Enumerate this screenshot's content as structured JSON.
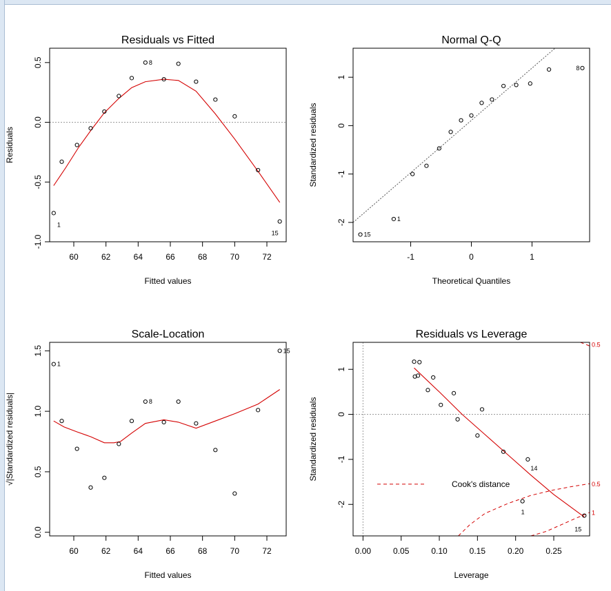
{
  "colors": {
    "smooth": "#d40000",
    "cooks": "#d40000",
    "reference": "#9a9a9a",
    "points": "#000000"
  },
  "chart_data": [
    {
      "type": "scatter",
      "title": "Residuals vs Fitted",
      "xlabel": "Fitted values",
      "ylabel": "Residuals",
      "xlim": [
        58.5,
        73.2
      ],
      "ylim": [
        -1.0,
        0.62
      ],
      "xticks": [
        60,
        62,
        64,
        66,
        68,
        70,
        72
      ],
      "yticks": [
        -1.0,
        -0.5,
        0.0,
        0.5
      ],
      "ytick_labels": [
        "-1.0",
        "-0.5",
        "0.0",
        "0.5"
      ],
      "hline": 0,
      "points": [
        {
          "x": 58.75,
          "y": -0.76,
          "label": "1"
        },
        {
          "x": 59.25,
          "y": -0.33,
          "label": ""
        },
        {
          "x": 60.2,
          "y": -0.19,
          "label": ""
        },
        {
          "x": 61.05,
          "y": -0.05,
          "label": ""
        },
        {
          "x": 61.9,
          "y": 0.09,
          "label": ""
        },
        {
          "x": 62.8,
          "y": 0.22,
          "label": ""
        },
        {
          "x": 63.6,
          "y": 0.37,
          "label": ""
        },
        {
          "x": 64.45,
          "y": 0.5,
          "label": "8"
        },
        {
          "x": 65.6,
          "y": 0.36,
          "label": ""
        },
        {
          "x": 66.5,
          "y": 0.49,
          "label": ""
        },
        {
          "x": 67.6,
          "y": 0.34,
          "label": ""
        },
        {
          "x": 68.8,
          "y": 0.19,
          "label": ""
        },
        {
          "x": 70.0,
          "y": 0.05,
          "label": ""
        },
        {
          "x": 71.45,
          "y": -0.4,
          "label": ""
        },
        {
          "x": 72.8,
          "y": -0.83,
          "label": "15"
        }
      ],
      "smooth": [
        [
          58.75,
          -0.53
        ],
        [
          59.5,
          -0.38
        ],
        [
          60.3,
          -0.21
        ],
        [
          61.1,
          -0.06
        ],
        [
          61.9,
          0.08
        ],
        [
          62.8,
          0.2
        ],
        [
          63.6,
          0.29
        ],
        [
          64.45,
          0.34
        ],
        [
          65.6,
          0.36
        ],
        [
          66.5,
          0.35
        ],
        [
          67.6,
          0.26
        ],
        [
          68.8,
          0.07
        ],
        [
          70.0,
          -0.14
        ],
        [
          71.45,
          -0.41
        ],
        [
          72.8,
          -0.67
        ]
      ]
    },
    {
      "type": "scatter",
      "title": "Normal Q-Q",
      "xlabel": "Theoretical Quantiles",
      "ylabel": "Standardized residuals",
      "xlim": [
        -1.95,
        1.95
      ],
      "ylim": [
        -2.4,
        1.6
      ],
      "xticks": [
        -1,
        0,
        1
      ],
      "yticks": [
        -2,
        -1,
        0,
        1
      ],
      "ytick_labels": [
        "-2",
        "-1",
        "0",
        "1"
      ],
      "refline": [
        [
          -1.95,
          -2.0
        ],
        [
          1.38,
          1.6
        ]
      ],
      "points": [
        {
          "x": -1.83,
          "y": -2.25,
          "label": "15"
        },
        {
          "x": -1.28,
          "y": -1.93,
          "label": "1"
        },
        {
          "x": -0.97,
          "y": -1.0,
          "label": ""
        },
        {
          "x": -0.74,
          "y": -0.83,
          "label": ""
        },
        {
          "x": -0.53,
          "y": -0.47,
          "label": ""
        },
        {
          "x": -0.34,
          "y": -0.13,
          "label": ""
        },
        {
          "x": -0.17,
          "y": 0.11,
          "label": ""
        },
        {
          "x": 0.0,
          "y": 0.21,
          "label": ""
        },
        {
          "x": 0.17,
          "y": 0.47,
          "label": ""
        },
        {
          "x": 0.34,
          "y": 0.54,
          "label": ""
        },
        {
          "x": 0.53,
          "y": 0.82,
          "label": ""
        },
        {
          "x": 0.74,
          "y": 0.84,
          "label": ""
        },
        {
          "x": 0.97,
          "y": 0.87,
          "label": ""
        },
        {
          "x": 1.28,
          "y": 1.16,
          "label": ""
        },
        {
          "x": 1.83,
          "y": 1.19,
          "label": "8"
        }
      ]
    },
    {
      "type": "scatter",
      "title": "Scale-Location",
      "xlabel": "Fitted values",
      "ylabel": "√|Standardized residuals|",
      "xlim": [
        58.5,
        73.2
      ],
      "ylim": [
        -0.03,
        1.57
      ],
      "xticks": [
        60,
        62,
        64,
        66,
        68,
        70,
        72
      ],
      "yticks": [
        0.0,
        0.5,
        1.0,
        1.5
      ],
      "ytick_labels": [
        "0.0",
        "0.5",
        "1.0",
        "1.5"
      ],
      "points": [
        {
          "x": 58.75,
          "y": 1.39,
          "label": "1"
        },
        {
          "x": 59.25,
          "y": 0.92,
          "label": ""
        },
        {
          "x": 60.2,
          "y": 0.69,
          "label": ""
        },
        {
          "x": 61.05,
          "y": 0.37,
          "label": ""
        },
        {
          "x": 61.9,
          "y": 0.45,
          "label": ""
        },
        {
          "x": 62.8,
          "y": 0.73,
          "label": ""
        },
        {
          "x": 63.6,
          "y": 0.92,
          "label": ""
        },
        {
          "x": 64.45,
          "y": 1.08,
          "label": "8"
        },
        {
          "x": 65.6,
          "y": 0.91,
          "label": ""
        },
        {
          "x": 66.5,
          "y": 1.08,
          "label": ""
        },
        {
          "x": 67.6,
          "y": 0.9,
          "label": ""
        },
        {
          "x": 68.8,
          "y": 0.68,
          "label": ""
        },
        {
          "x": 70.0,
          "y": 0.32,
          "label": ""
        },
        {
          "x": 71.45,
          "y": 1.01,
          "label": ""
        },
        {
          "x": 72.8,
          "y": 1.5,
          "label": "15"
        }
      ],
      "smooth": [
        [
          58.75,
          0.92
        ],
        [
          59.4,
          0.87
        ],
        [
          60.2,
          0.83
        ],
        [
          61.05,
          0.79
        ],
        [
          61.9,
          0.74
        ],
        [
          62.5,
          0.74
        ],
        [
          62.9,
          0.75
        ],
        [
          63.6,
          0.82
        ],
        [
          64.45,
          0.9
        ],
        [
          65.6,
          0.93
        ],
        [
          66.5,
          0.91
        ],
        [
          67.6,
          0.86
        ],
        [
          68.8,
          0.92
        ],
        [
          70.0,
          0.98
        ],
        [
          71.45,
          1.06
        ],
        [
          72.8,
          1.18
        ]
      ]
    },
    {
      "type": "scatter",
      "title": "Residuals vs Leverage",
      "xlabel": "Leverage",
      "ylabel": "Standardized residuals",
      "xlim": [
        -0.013,
        0.297
      ],
      "ylim": [
        -2.7,
        1.6
      ],
      "xticks": [
        0.0,
        0.05,
        0.1,
        0.15,
        0.2,
        0.25
      ],
      "xtick_labels": [
        "0.00",
        "0.05",
        "0.10",
        "0.15",
        "0.20",
        "0.25"
      ],
      "yticks": [
        -2,
        -1,
        0,
        1
      ],
      "ytick_labels": [
        "-2",
        "-1",
        "0",
        "1"
      ],
      "hline": 0,
      "vline": 0,
      "legend": {
        "text": "Cook's distance",
        "position": "bottom-left"
      },
      "cooks_labels": [
        {
          "text": "0.5",
          "y": 1.55
        },
        {
          "text": "0.5",
          "y": -1.55
        },
        {
          "text": "1",
          "y": -2.19
        }
      ],
      "points": [
        {
          "x": 0.067,
          "y": 1.17,
          "label": ""
        },
        {
          "x": 0.074,
          "y": 1.16,
          "label": ""
        },
        {
          "x": 0.068,
          "y": 0.84,
          "label": ""
        },
        {
          "x": 0.072,
          "y": 0.86,
          "label": ""
        },
        {
          "x": 0.085,
          "y": 0.54,
          "label": ""
        },
        {
          "x": 0.092,
          "y": 0.82,
          "label": ""
        },
        {
          "x": 0.102,
          "y": 0.21,
          "label": ""
        },
        {
          "x": 0.119,
          "y": 0.47,
          "label": ""
        },
        {
          "x": 0.124,
          "y": -0.11,
          "label": ""
        },
        {
          "x": 0.15,
          "y": -0.47,
          "label": ""
        },
        {
          "x": 0.156,
          "y": 0.11,
          "label": ""
        },
        {
          "x": 0.184,
          "y": -0.83,
          "label": ""
        },
        {
          "x": 0.216,
          "y": -1.0,
          "label": "14"
        },
        {
          "x": 0.209,
          "y": -1.93,
          "label": "1"
        },
        {
          "x": 0.29,
          "y": -2.25,
          "label": "15"
        }
      ],
      "smooth": [
        [
          0.067,
          1.03
        ],
        [
          0.1,
          0.5
        ],
        [
          0.13,
          0.0
        ],
        [
          0.16,
          -0.45
        ],
        [
          0.19,
          -0.9
        ],
        [
          0.22,
          -1.35
        ],
        [
          0.25,
          -1.78
        ],
        [
          0.29,
          -2.28
        ]
      ],
      "cooks_curves": [
        [
          [
            0.125,
            -2.7
          ],
          [
            0.14,
            -2.45
          ],
          [
            0.16,
            -2.2
          ],
          [
            0.19,
            -1.98
          ],
          [
            0.22,
            -1.8
          ],
          [
            0.25,
            -1.68
          ],
          [
            0.275,
            -1.6
          ],
          [
            0.297,
            -1.54
          ]
        ],
        [
          [
            0.22,
            -2.7
          ],
          [
            0.24,
            -2.6
          ],
          [
            0.26,
            -2.45
          ],
          [
            0.28,
            -2.3
          ],
          [
            0.297,
            -2.18
          ]
        ],
        [
          [
            0.285,
            1.6
          ],
          [
            0.297,
            1.52
          ]
        ]
      ]
    }
  ]
}
